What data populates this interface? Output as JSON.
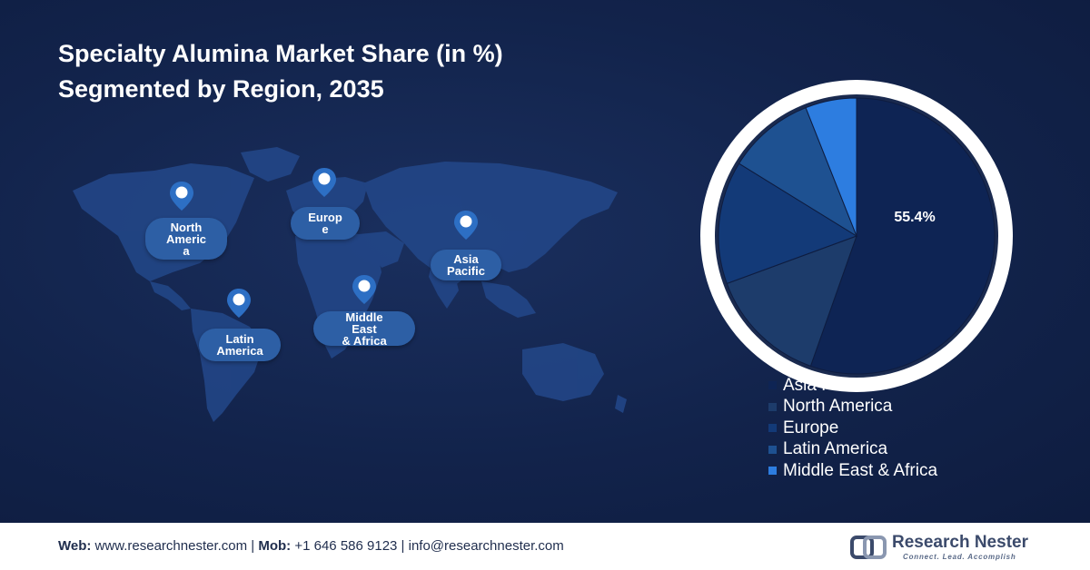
{
  "title_line1": "Specialty Alumina Market Share (in %)",
  "title_line2": "Segmented by Region, 2035",
  "map_regions": [
    {
      "name": "north-america",
      "lines": [
        "North",
        "Americ",
        "a"
      ]
    },
    {
      "name": "europe",
      "lines": [
        "Europ",
        "e"
      ]
    },
    {
      "name": "asia-pacific",
      "lines": [
        "Asia",
        "Pacific"
      ]
    },
    {
      "name": "latin-america",
      "lines": [
        "Latin",
        "America"
      ]
    },
    {
      "name": "middle-east-africa",
      "lines": [
        "Middle",
        "East",
        "& Africa"
      ]
    }
  ],
  "chart_data": {
    "type": "pie",
    "title": "Specialty Alumina Market Share (in %) Segmented by Region, 2035",
    "slices": [
      {
        "label": "Asia Pacific",
        "value": 55.4,
        "color": "#0e2454",
        "data_label": "55.4%"
      },
      {
        "label": "North America",
        "value": 14.0,
        "color": "#1d3c6b"
      },
      {
        "label": "Europe",
        "value": 14.4,
        "color": "#133a78"
      },
      {
        "label": "Latin America",
        "value": 10.2,
        "color": "#1e5191"
      },
      {
        "label": "Middle East & Africa",
        "value": 6.0,
        "color": "#2d7de0"
      }
    ],
    "legend_position": "bottom-right"
  },
  "footer": {
    "web_label": "Web:",
    "web_value": " www.researchnester.com | ",
    "mob_label": "Mob:",
    "mob_value": " +1 646 586 9123 | info@researchnester.com",
    "logo_name": "Research Nester",
    "logo_tagline": "Connect. Lead. Accomplish"
  },
  "colors": {
    "background": "#12234b",
    "map_land": "#23488a",
    "label_fill": "#2d5fa5"
  }
}
